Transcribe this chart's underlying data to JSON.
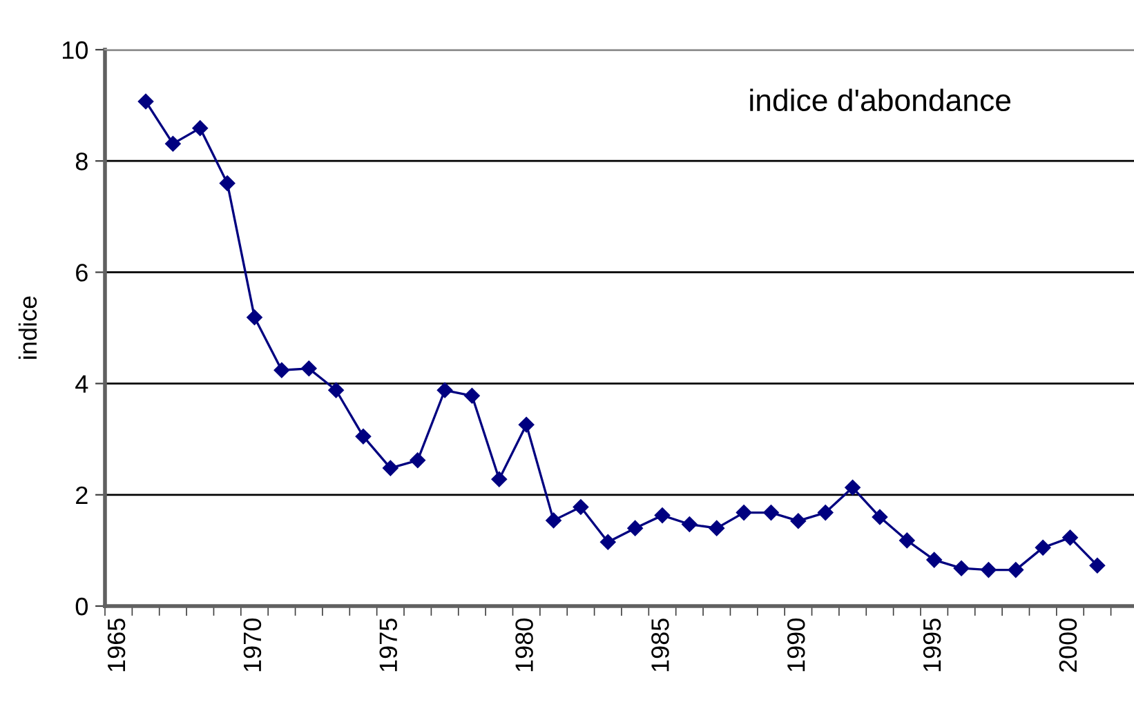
{
  "chart_data": {
    "type": "line",
    "ylabel": "indice",
    "annotations": [
      "indice d'abondance"
    ],
    "categories": [
      "1965",
      null,
      null,
      null,
      null,
      "1970",
      null,
      null,
      null,
      null,
      "1975",
      null,
      null,
      null,
      null,
      "1980",
      null,
      null,
      null,
      null,
      "1985",
      null,
      null,
      null,
      null,
      "1990",
      null,
      null,
      null,
      null,
      "1995",
      null,
      null,
      null,
      null,
      "2000",
      null
    ],
    "series": [
      {
        "color": "#000080",
        "values": [
          null,
          9.07,
          8.31,
          8.59,
          7.6,
          5.19,
          4.24,
          4.27,
          3.88,
          3.05,
          2.48,
          2.62,
          3.88,
          3.78,
          2.28,
          3.26,
          1.54,
          1.78,
          1.15,
          1.4,
          1.63,
          1.47,
          1.4,
          1.68,
          1.68,
          1.53,
          1.68,
          2.13,
          1.6,
          1.18,
          0.83,
          0.68,
          0.65,
          0.65,
          1.05,
          1.23,
          0.73
        ]
      }
    ],
    "ylim": [
      0,
      10
    ],
    "yticks": [
      0,
      2,
      4,
      6,
      8,
      10
    ],
    "grid": "y",
    "marker": "diamond",
    "line_style": "solid",
    "legend": false
  }
}
